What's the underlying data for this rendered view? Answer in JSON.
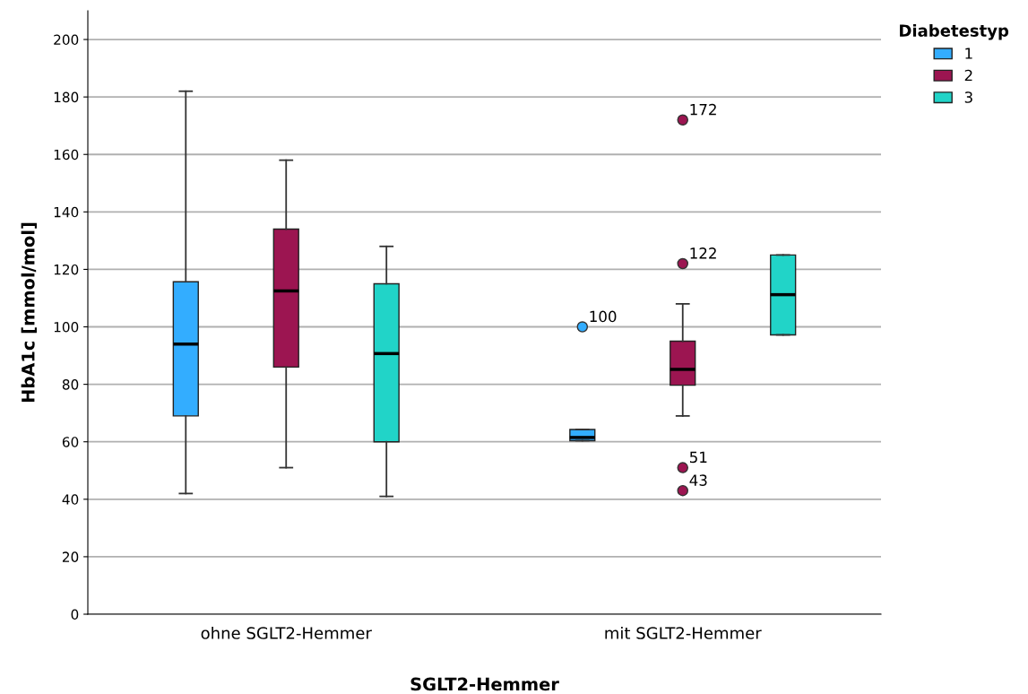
{
  "chart_data": {
    "type": "box",
    "xlabel": "SGLT2-Hemmer",
    "ylabel": "HbA1c [mmol/mol]",
    "legend_title": "Diabetestyp",
    "legend": "top right",
    "grid": "y",
    "categories": [
      "ohne SGLT2-Hemmer",
      "mit SGLT2-Hemmer"
    ],
    "ylim": [
      0,
      210
    ],
    "yticks": [
      0,
      20,
      40,
      60,
      80,
      100,
      120,
      140,
      160,
      180,
      200
    ],
    "series": [
      {
        "name": "1",
        "color": "#33adff",
        "boxes": [
          {
            "low": 42,
            "q1": 69,
            "median": 94,
            "q3": 115.7,
            "high": 182
          },
          {
            "low": 60.4,
            "q1": 60.4,
            "median": 61.5,
            "q3": 64.3,
            "high": 64.3,
            "outliers": [
              100
            ]
          }
        ]
      },
      {
        "name": "2",
        "color": "#9c1551",
        "boxes": [
          {
            "low": 51,
            "q1": 86,
            "median": 112.5,
            "q3": 134,
            "high": 158
          },
          {
            "low": 69,
            "q1": 79.7,
            "median": 85.2,
            "q3": 95,
            "high": 108,
            "outliers": [
              172,
              122,
              51,
              43
            ]
          }
        ]
      },
      {
        "name": "3",
        "color": "#21d4c8",
        "boxes": [
          {
            "low": 41,
            "q1": 60,
            "median": 90.7,
            "q3": 115,
            "high": 128
          },
          {
            "low": 97.2,
            "q1": 97.2,
            "median": 111.2,
            "q3": 125,
            "high": 125
          }
        ]
      }
    ],
    "annotations": [
      "100",
      "172",
      "122",
      "51",
      "43"
    ]
  }
}
